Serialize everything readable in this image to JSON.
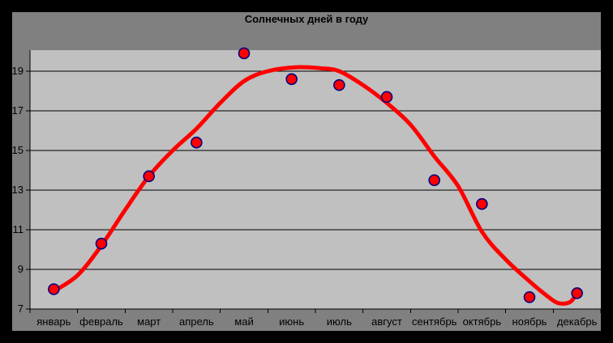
{
  "chart_data": {
    "type": "scatter",
    "title": "Солнечных дней в году",
    "categories": [
      "январь",
      "февраль",
      "март",
      "апрель",
      "май",
      "июнь",
      "июль",
      "август",
      "сентябрь",
      "октябрь",
      "ноябрь",
      "декабрь"
    ],
    "values": [
      8.0,
      10.3,
      13.7,
      15.4,
      19.9,
      18.6,
      18.3,
      17.7,
      13.5,
      12.3,
      7.6,
      7.8
    ],
    "yticks": [
      7,
      9,
      11,
      13,
      15,
      17,
      19
    ],
    "ylim": [
      7,
      20
    ],
    "xlabel": "",
    "ylabel": "",
    "grid": true,
    "legend": false,
    "trendline": {
      "type": "polynomial",
      "points": [
        [
          0,
          7.9
        ],
        [
          0.5,
          8.7
        ],
        [
          1,
          10.2
        ],
        [
          1.5,
          12.0
        ],
        [
          2,
          13.7
        ],
        [
          2.5,
          15.0
        ],
        [
          3,
          16.1
        ],
        [
          3.5,
          17.4
        ],
        [
          4,
          18.5
        ],
        [
          4.5,
          19.0
        ],
        [
          5.1,
          19.2
        ],
        [
          5.6,
          19.15
        ],
        [
          6,
          19.0
        ],
        [
          6.5,
          18.3
        ],
        [
          7,
          17.4
        ],
        [
          7.5,
          16.3
        ],
        [
          8,
          14.7
        ],
        [
          8.5,
          13.2
        ],
        [
          9,
          10.9
        ],
        [
          9.5,
          9.5
        ],
        [
          10,
          8.4
        ],
        [
          10.35,
          7.7
        ],
        [
          10.6,
          7.3
        ],
        [
          10.85,
          7.35
        ],
        [
          11,
          7.8
        ]
      ]
    }
  },
  "colors": {
    "frame": "#000000",
    "chart_bg": "#808080",
    "plot_bg": "#c0c0c0",
    "grid": "#000000",
    "axis": "#000000",
    "text": "#000000",
    "series": "#ff0000",
    "marker_fill": "#ff0000",
    "marker_border": "#000080"
  }
}
